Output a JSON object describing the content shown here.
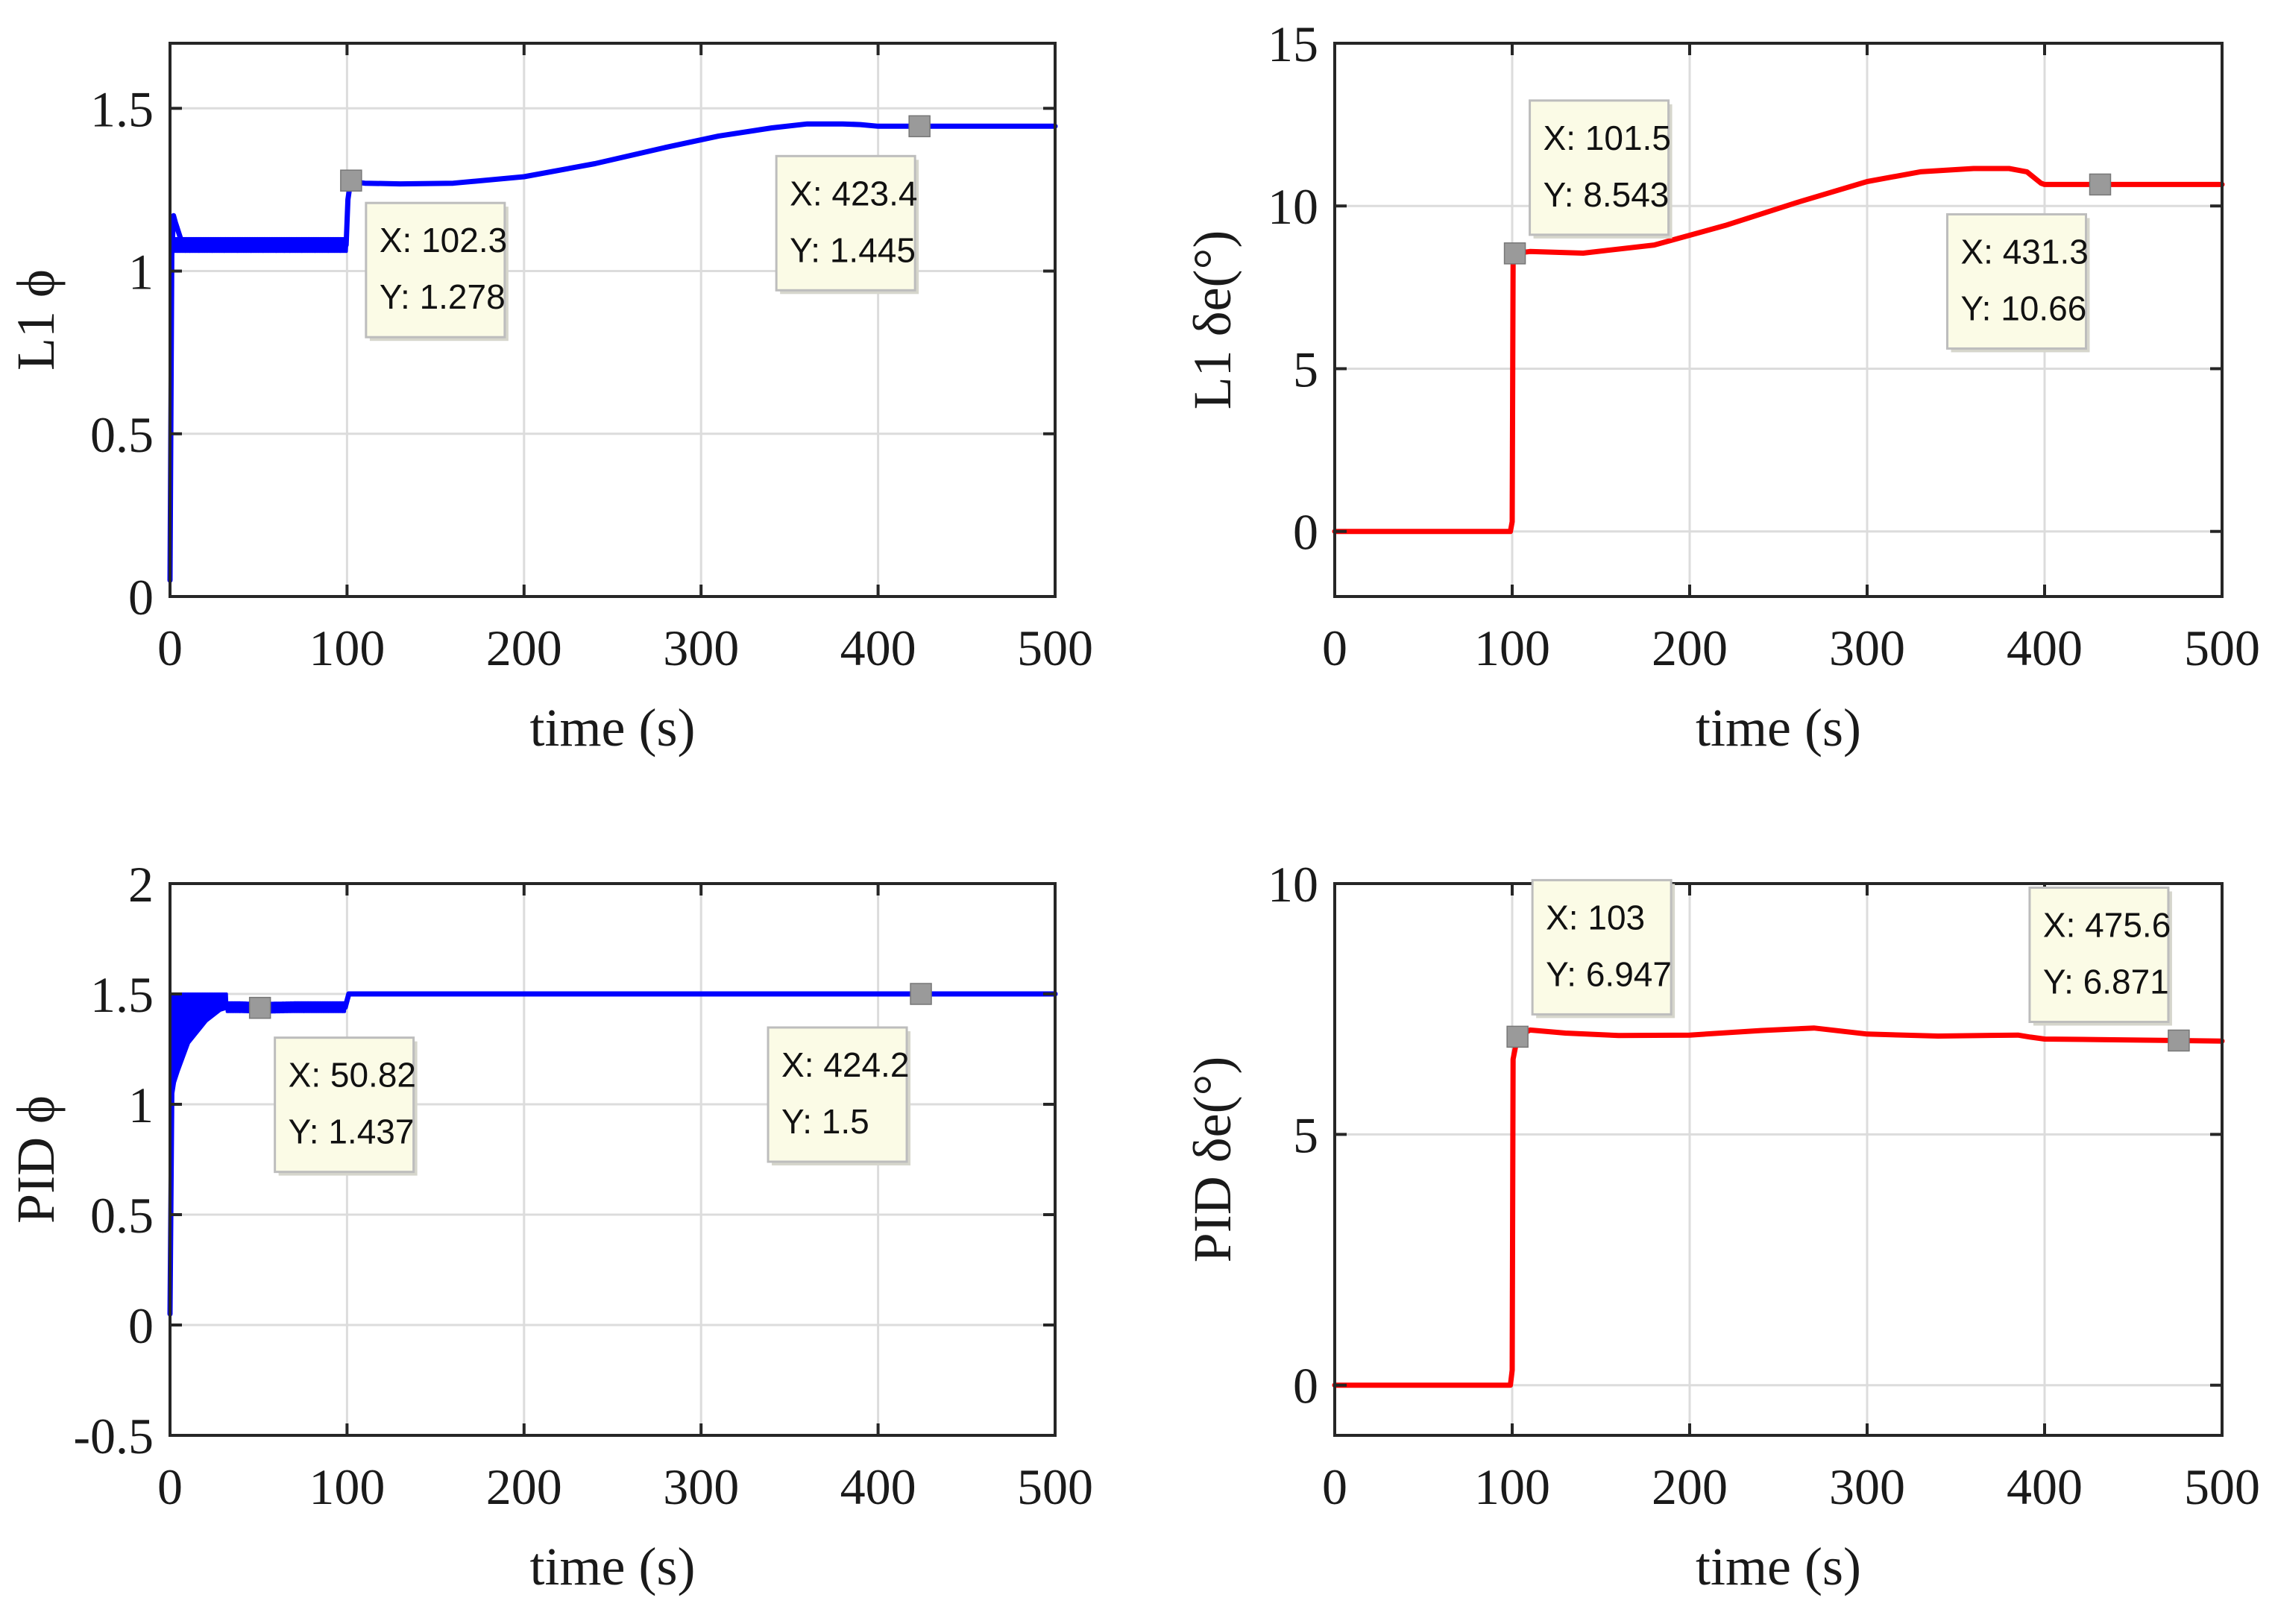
{
  "chart_data": [
    {
      "type": "line",
      "xlabel": "time (s)",
      "ylabel": "L1 ϕ",
      "xlim": [
        0,
        500
      ],
      "ylim": [
        0,
        1.7
      ],
      "xticks": [
        0,
        100,
        200,
        300,
        400,
        500
      ],
      "yticks": [
        0,
        0.5,
        1,
        1.5
      ],
      "ytick_labels": [
        "0",
        "0.5",
        "1",
        "1.5"
      ],
      "grid": true,
      "series": [
        {
          "name": "L1 phi",
          "color": "#0000ff",
          "x": [
            0,
            1,
            2,
            3,
            6,
            10,
            20,
            40,
            60,
            80,
            99.5,
            100.5,
            102,
            110,
            130,
            160,
            200,
            240,
            280,
            310,
            340,
            360,
            380,
            390,
            400,
            420,
            440,
            470,
            500
          ],
          "y": [
            0.05,
            1.05,
            1.17,
            1.15,
            1.1,
            1.085,
            1.08,
            1.08,
            1.08,
            1.08,
            1.08,
            1.22,
            1.275,
            1.27,
            1.268,
            1.27,
            1.29,
            1.33,
            1.38,
            1.415,
            1.44,
            1.452,
            1.452,
            1.45,
            1.445,
            1.445,
            1.445,
            1.445,
            1.445
          ],
          "oscillation": {
            "x_range": [
              2,
              100
            ],
            "low": 1.06,
            "high": 1.1
          }
        }
      ],
      "datatips": [
        {
          "x": 102.3,
          "y": 1.278,
          "x_text": "X: 102.3",
          "y_text": "Y: 1.278"
        },
        {
          "x": 423.4,
          "y": 1.445,
          "x_text": "X: 423.4",
          "y_text": "Y: 1.445"
        }
      ]
    },
    {
      "type": "line",
      "xlabel": "time (s)",
      "ylabel": "L1 δe(°)",
      "xlim": [
        0,
        500
      ],
      "ylim": [
        -2,
        15
      ],
      "xticks": [
        0,
        100,
        200,
        300,
        400,
        500
      ],
      "yticks": [
        0,
        5,
        10,
        15
      ],
      "ytick_labels": [
        "0",
        "5",
        "10",
        "15"
      ],
      "grid": true,
      "series": [
        {
          "name": "L1 delta_e",
          "color": "#ff0000",
          "x": [
            0,
            99,
            100,
            100.5,
            101.5,
            110,
            140,
            180,
            220,
            260,
            300,
            330,
            360,
            380,
            390,
            398,
            400,
            420,
            450,
            480,
            500
          ],
          "y": [
            0,
            0,
            0.3,
            8.2,
            8.543,
            8.6,
            8.55,
            8.8,
            9.4,
            10.1,
            10.75,
            11.05,
            11.15,
            11.15,
            11.05,
            10.7,
            10.66,
            10.66,
            10.66,
            10.66,
            10.66
          ]
        }
      ],
      "datatips": [
        {
          "x": 101.5,
          "y": 8.543,
          "x_text": "X: 101.5",
          "y_text": "Y: 8.543"
        },
        {
          "x": 431.3,
          "y": 10.66,
          "x_text": "X: 431.3",
          "y_text": "Y: 10.66"
        }
      ]
    },
    {
      "type": "line",
      "xlabel": "time (s)",
      "ylabel": "PID ϕ",
      "xlim": [
        0,
        500
      ],
      "ylim": [
        -0.5,
        2
      ],
      "xticks": [
        0,
        100,
        200,
        300,
        400,
        500
      ],
      "yticks": [
        -0.5,
        0,
        0.5,
        1,
        1.5,
        2
      ],
      "ytick_labels": [
        "-0.5",
        "0",
        "0.5",
        "1",
        "1.5",
        "2"
      ],
      "grid": true,
      "series": [
        {
          "name": "PID phi",
          "color": "#0000ff",
          "x": [
            0,
            1,
            2,
            4,
            10,
            20,
            28,
            32,
            40,
            50.82,
            70,
            99,
            100,
            101,
            103,
            150,
            200,
            300,
            400,
            424.2,
            500
          ],
          "y": [
            0.05,
            1.05,
            1.1,
            1.15,
            1.28,
            1.38,
            1.43,
            1.44,
            1.44,
            1.437,
            1.44,
            1.44,
            1.47,
            1.5,
            1.5,
            1.5,
            1.5,
            1.5,
            1.5,
            1.5,
            1.5
          ],
          "oscillation": {
            "x_range": [
              1,
              99
            ],
            "high": 1.5,
            "settle_x": 32
          }
        }
      ],
      "datatips": [
        {
          "x": 50.82,
          "y": 1.437,
          "x_text": "X: 50.82",
          "y_text": "Y: 1.437"
        },
        {
          "x": 424.2,
          "y": 1.5,
          "x_text": "X: 424.2",
          "y_text": "Y: 1.5"
        }
      ]
    },
    {
      "type": "line",
      "xlabel": "time (s)",
      "ylabel": "PID δe(°)",
      "xlim": [
        0,
        500
      ],
      "ylim": [
        -1,
        10
      ],
      "xticks": [
        0,
        100,
        200,
        300,
        400,
        500
      ],
      "yticks": [
        0,
        5,
        10
      ],
      "ytick_labels": [
        "0",
        "5",
        "10"
      ],
      "grid": true,
      "series": [
        {
          "name": "PID delta_e",
          "color": "#ff0000",
          "x": [
            0,
            99,
            100,
            100.5,
            103,
            110,
            130,
            160,
            200,
            240,
            270,
            300,
            340,
            385,
            392,
            400,
            430,
            475.6,
            500
          ],
          "y": [
            0,
            0,
            0.3,
            6.5,
            6.947,
            7.08,
            7.02,
            6.97,
            6.98,
            7.07,
            7.12,
            7.0,
            6.96,
            6.98,
            6.94,
            6.9,
            6.89,
            6.871,
            6.86
          ]
        }
      ],
      "datatips": [
        {
          "x": 103,
          "y": 6.947,
          "x_text": "X: 103",
          "y_text": "Y: 6.947"
        },
        {
          "x": 475.6,
          "y": 6.871,
          "x_text": "X: 475.6",
          "y_text": "Y: 6.871"
        }
      ]
    }
  ]
}
